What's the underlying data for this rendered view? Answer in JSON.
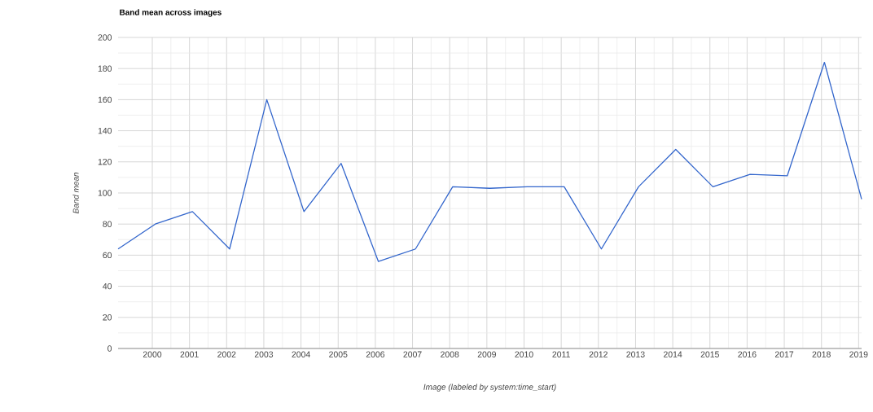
{
  "chart_data": {
    "type": "line",
    "title": "Band mean across images",
    "xlabel": "Image (labeled by system:time_start)",
    "ylabel": "Band mean",
    "x": [
      "1999-02",
      "2000-02",
      "2001-02",
      "2002-02",
      "2003-02",
      "2004-02",
      "2005-02",
      "2006-02",
      "2007-02",
      "2008-02",
      "2009-02",
      "2010-02",
      "2011-02",
      "2012-02",
      "2013-02",
      "2014-02",
      "2015-02",
      "2016-02",
      "2017-02",
      "2018-02",
      "2019-02"
    ],
    "series": [
      {
        "color": "#3366cc",
        "values": [
          64,
          80,
          88,
          64,
          160,
          88,
          119,
          56,
          64,
          104,
          103,
          104,
          104,
          64,
          104,
          128,
          104,
          112,
          111,
          184,
          96
        ]
      }
    ],
    "xlim": [
      "1999-02",
      "2019-02"
    ],
    "xticks": [
      "2000",
      "2001",
      "2002",
      "2003",
      "2004",
      "2005",
      "2006",
      "2007",
      "2008",
      "2009",
      "2010",
      "2011",
      "2012",
      "2013",
      "2014",
      "2015",
      "2016",
      "2017",
      "2018",
      "2019"
    ],
    "ylim": [
      0,
      200
    ],
    "yticks": [
      0,
      20,
      40,
      60,
      80,
      100,
      120,
      140,
      160,
      180,
      200
    ],
    "grid": true,
    "marker": "none",
    "line_style": "solid"
  }
}
